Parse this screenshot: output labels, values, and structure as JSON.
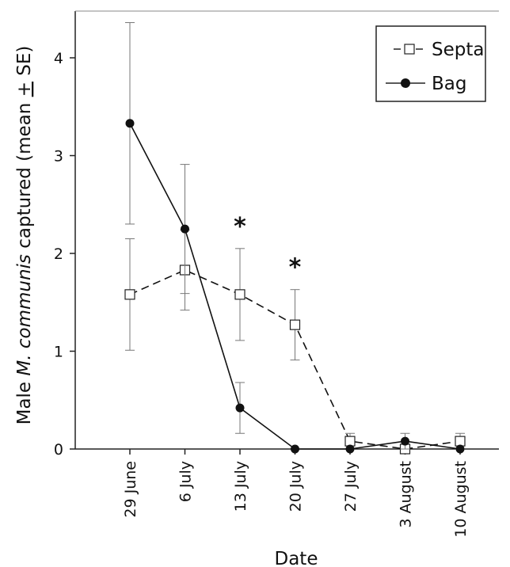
{
  "chart_data": {
    "type": "line",
    "xlabel": "Date",
    "ylabel_parts": [
      "Male ",
      "M. communis",
      " captured (mean ",
      "+",
      " SE)"
    ],
    "categories": [
      "29 June",
      "6 July",
      "13 July",
      "20 July",
      "27 July",
      "3 August",
      "10 August"
    ],
    "ylim": [
      0,
      4.5
    ],
    "yticks": [
      0,
      1,
      2,
      3,
      4
    ],
    "grid": false,
    "legend_position": "top-right",
    "significance_markers": [
      {
        "category": "13 July",
        "label": "*"
      },
      {
        "category": "20 July",
        "label": "*"
      }
    ],
    "series": [
      {
        "name": "Septa",
        "marker": "open-square",
        "line_style": "dashed",
        "values": [
          1.58,
          1.83,
          1.58,
          1.27,
          0.08,
          0.0,
          0.08
        ],
        "error": [
          0.57,
          0.41,
          0.47,
          0.36,
          0.08,
          0.04,
          0.08
        ]
      },
      {
        "name": "Bag",
        "marker": "filled-circle",
        "line_style": "solid",
        "values": [
          3.33,
          2.25,
          0.42,
          0.0,
          0.0,
          0.08,
          0.0
        ],
        "error": [
          1.03,
          0.66,
          0.26,
          0.0,
          0.0,
          0.08,
          0.0
        ]
      }
    ]
  }
}
